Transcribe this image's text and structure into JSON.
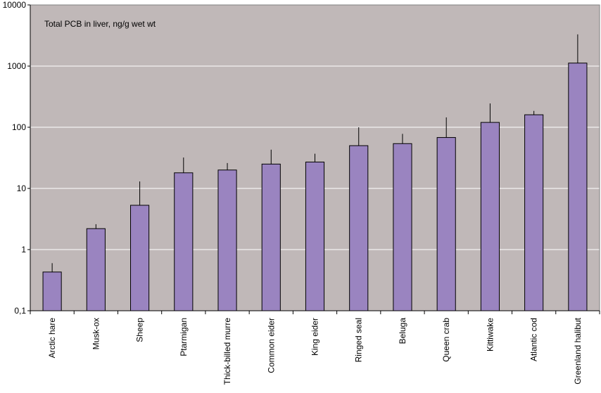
{
  "chart_data": {
    "type": "bar",
    "title": "Total PCB in liver, ng/g wet wt",
    "yscale": "log",
    "ylim": [
      0.1,
      10000
    ],
    "ytick_values": [
      0.1,
      1,
      10,
      100,
      1000,
      10000
    ],
    "ytick_labels": [
      "0,1",
      "1",
      "10",
      "100",
      "1000",
      "10000"
    ],
    "categories": [
      "Arctic hare",
      "Musk-ox",
      "Sheep",
      "Ptarmigan",
      "Thick-billed murre",
      "Common eider",
      "King eider",
      "Ringed seal",
      "Beluga",
      "Queen crab",
      "Kittiwake",
      "Atlantic cod",
      "Greenland halibut"
    ],
    "values": [
      0.43,
      2.2,
      5.3,
      18,
      20,
      25,
      27,
      50,
      54,
      68,
      120,
      160,
      1120
    ],
    "error_upper": [
      0.6,
      2.6,
      13,
      32,
      26,
      43,
      37,
      100,
      78,
      145,
      245,
      185,
      3300
    ],
    "grid": true,
    "colors": {
      "bar": "#9a84c0",
      "plot_bg": "#c0b8b8",
      "grid": "#ffffff"
    }
  }
}
